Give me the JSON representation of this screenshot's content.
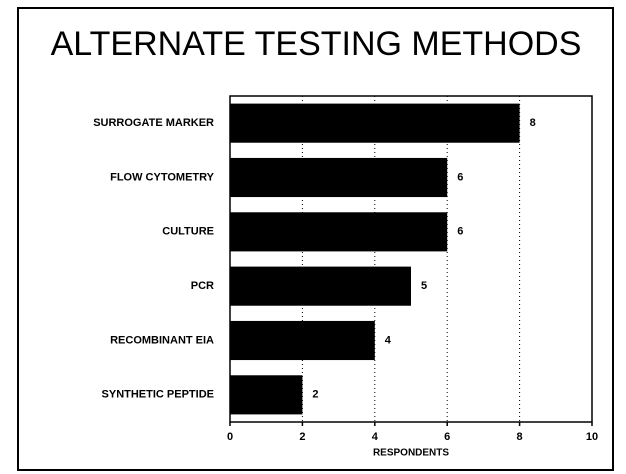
{
  "chart_data": {
    "type": "bar",
    "orientation": "horizontal",
    "title": "ALTERNATE TESTING METHODS",
    "categories": [
      "SURROGATE MARKER",
      "FLOW CYTOMETRY",
      "CULTURE",
      "PCR",
      "RECOMBINANT EIA",
      "SYNTHETIC PEPTIDE"
    ],
    "values": [
      8,
      6,
      6,
      5,
      4,
      2
    ],
    "color": "#000000",
    "xlabel": "RESPONDENTS",
    "xlim": [
      0,
      10
    ],
    "xticks": [
      0,
      2,
      4,
      6,
      8,
      10
    ],
    "grid": true
  }
}
